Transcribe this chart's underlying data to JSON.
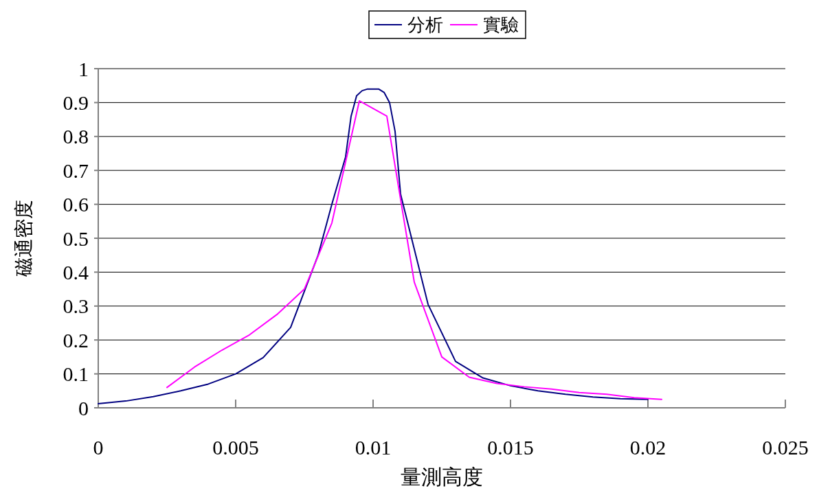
{
  "chart_data": {
    "type": "line",
    "xlabel": "量測高度",
    "ylabel": "磁通密度",
    "xlim": [
      0,
      0.025
    ],
    "xticks": [
      0,
      0.005,
      0.01,
      0.015,
      0.02,
      0.025
    ],
    "ylim": [
      0,
      1
    ],
    "yticks": [
      0,
      0.1,
      0.2,
      0.3,
      0.4,
      0.5,
      0.6,
      0.7,
      0.8,
      0.9,
      1
    ],
    "grid": "y",
    "legend": "top",
    "marker": "none",
    "line_style": "solid",
    "series": [
      {
        "name": "分析",
        "color": "#000080",
        "x": [
          0,
          0.001,
          0.002,
          0.003,
          0.004,
          0.005,
          0.006,
          0.007,
          0.008,
          0.0085,
          0.009,
          0.0092,
          0.0094,
          0.0096,
          0.0098,
          0.01,
          0.0102,
          0.0104,
          0.0106,
          0.0108,
          0.011,
          0.012,
          0.013,
          0.014,
          0.015,
          0.016,
          0.017,
          0.018,
          0.019,
          0.02
        ],
        "values": [
          0.012,
          0.02,
          0.033,
          0.05,
          0.07,
          0.1,
          0.148,
          0.237,
          0.45,
          0.6,
          0.74,
          0.86,
          0.92,
          0.935,
          0.94,
          0.94,
          0.94,
          0.93,
          0.9,
          0.815,
          0.63,
          0.305,
          0.137,
          0.088,
          0.065,
          0.05,
          0.04,
          0.032,
          0.027,
          0.025
        ]
      },
      {
        "name": "實驗",
        "color": "#ff00ff",
        "x": [
          0.0025,
          0.0035,
          0.0045,
          0.0055,
          0.0065,
          0.0075,
          0.0085,
          0.0095,
          0.0105,
          0.0115,
          0.0125,
          0.0135,
          0.0145,
          0.0155,
          0.0165,
          0.0175,
          0.0185,
          0.0195,
          0.0205
        ],
        "values": [
          0.06,
          0.12,
          0.17,
          0.215,
          0.275,
          0.35,
          0.545,
          0.905,
          0.86,
          0.37,
          0.15,
          0.09,
          0.072,
          0.062,
          0.055,
          0.045,
          0.04,
          0.03,
          0.025
        ]
      }
    ]
  }
}
